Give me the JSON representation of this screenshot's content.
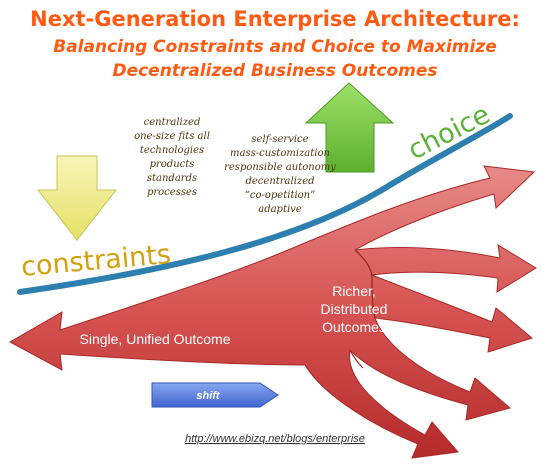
{
  "title": "Next-Generation Enterprise Architecture:",
  "subtitle_line1": "Balancing Constraints and Choice to Maximize",
  "subtitle_line2": "Decentralized Business Outcomes",
  "constraints": {
    "label": "constraints",
    "items": [
      "centralized",
      "one-size fits all",
      "technologies",
      "products",
      "standards",
      "processes"
    ]
  },
  "choice": {
    "label": "choice",
    "items": [
      "self-service",
      "mass-customization",
      "responsible autonomy",
      "decentralized",
      "“co-opetition”",
      "adaptive"
    ]
  },
  "outcomes": {
    "single": "Single, Unified Outcome",
    "richer_line1": "Richer,",
    "richer_line2": "Distributed",
    "richer_line3": "Outcomes"
  },
  "shift_label": "shift",
  "footer_url": "http://www.ebizq.net/blogs/enterprise",
  "colors": {
    "title": "#ff5a12",
    "arrow_red": "#cc3a38",
    "arrow_down_yellow": "#f0ed8a",
    "arrow_up_green": "#7cc84a",
    "curve_blue": "#2d7fb0",
    "shift_blue": "#5b84e6"
  }
}
